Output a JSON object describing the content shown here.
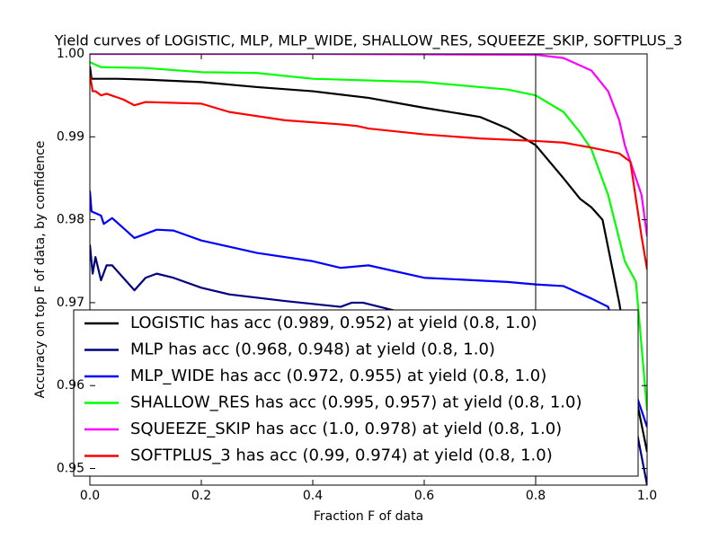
{
  "chart_data": {
    "type": "line",
    "title": "Yield curves of LOGISTIC, MLP, MLP_WIDE, SHALLOW_RES, SQUEEZE_SKIP, SOFTPLUS_3",
    "x_label": "Fraction F of data",
    "y_label": "Accuracy on top F of data, by confidence",
    "xlim": [
      0,
      1
    ],
    "ylim": [
      0.948,
      1.0
    ],
    "xticks": [
      {
        "value": 0,
        "label": "0.0"
      },
      {
        "value": 0.2,
        "label": "0.2"
      },
      {
        "value": 0.4,
        "label": "0.4"
      },
      {
        "value": 0.6,
        "label": "0.6"
      },
      {
        "value": 0.8,
        "label": "0.8"
      },
      {
        "value": 1,
        "label": "1.0"
      }
    ],
    "yticks": [
      {
        "value": 0.95,
        "label": "0.95"
      },
      {
        "value": 0.96,
        "label": "0.96"
      },
      {
        "value": 0.97,
        "label": "0.97"
      },
      {
        "value": 0.98,
        "label": "0.98"
      },
      {
        "value": 0.99,
        "label": "0.99"
      },
      {
        "value": 1.0,
        "label": "1.00"
      }
    ],
    "vline": 0.8,
    "legend": "lower left",
    "series": [
      {
        "name": "LOGISTIC has acc (0.989, 0.952) at yield (0.8, 1.0)",
        "color": "#000000",
        "x": [
          0,
          0.003,
          0.05,
          0.1,
          0.2,
          0.3,
          0.4,
          0.5,
          0.6,
          0.7,
          0.75,
          0.8,
          0.85,
          0.88,
          0.9,
          0.92,
          0.95,
          0.97,
          1.0
        ],
        "values": [
          0.9985,
          0.997,
          0.997,
          0.9969,
          0.9966,
          0.996,
          0.9955,
          0.9947,
          0.9935,
          0.9924,
          0.991,
          0.989,
          0.985,
          0.9825,
          0.9815,
          0.98,
          0.97,
          0.962,
          0.952
        ]
      },
      {
        "name": "MLP has acc (0.968, 0.948) at yield (0.8, 1.0)",
        "color": "#000080",
        "x": [
          0,
          0.005,
          0.01,
          0.02,
          0.03,
          0.04,
          0.08,
          0.1,
          0.12,
          0.15,
          0.2,
          0.25,
          0.35,
          0.45,
          0.47,
          0.49,
          0.55,
          0.7,
          0.8,
          0.9,
          0.95,
          0.98,
          1.0
        ],
        "values": [
          0.977,
          0.9735,
          0.9755,
          0.9727,
          0.9745,
          0.9745,
          0.9715,
          0.973,
          0.9735,
          0.973,
          0.9718,
          0.971,
          0.9702,
          0.9695,
          0.97,
          0.97,
          0.969,
          0.9685,
          0.968,
          0.966,
          0.962,
          0.955,
          0.948
        ]
      },
      {
        "name": "MLP_WIDE has acc (0.972, 0.955) at yield (0.8, 1.0)",
        "color": "#0000ff",
        "x": [
          0,
          0.003,
          0.01,
          0.02,
          0.025,
          0.04,
          0.06,
          0.08,
          0.12,
          0.15,
          0.2,
          0.3,
          0.4,
          0.45,
          0.5,
          0.6,
          0.75,
          0.8,
          0.85,
          0.9,
          0.93,
          0.96,
          1.0
        ],
        "values": [
          0.9835,
          0.981,
          0.9808,
          0.9805,
          0.9795,
          0.9802,
          0.979,
          0.9778,
          0.9788,
          0.9787,
          0.9775,
          0.976,
          0.975,
          0.9742,
          0.9745,
          0.973,
          0.9725,
          0.9722,
          0.972,
          0.9705,
          0.9695,
          0.963,
          0.955
        ]
      },
      {
        "name": "SHALLOW_RES has acc (0.995, 0.957) at yield (0.8, 1.0)",
        "color": "#00ff00",
        "x": [
          0,
          0.02,
          0.1,
          0.2,
          0.3,
          0.4,
          0.6,
          0.7,
          0.75,
          0.8,
          0.85,
          0.88,
          0.9,
          0.93,
          0.96,
          0.98,
          1.0
        ],
        "values": [
          0.999,
          0.9984,
          0.9983,
          0.9978,
          0.9977,
          0.997,
          0.9966,
          0.996,
          0.9957,
          0.995,
          0.993,
          0.9905,
          0.9885,
          0.983,
          0.975,
          0.9725,
          0.957
        ]
      },
      {
        "name": "SQUEEZE_SKIP has acc (1.0, 0.978) at yield (0.8, 1.0)",
        "color": "#ff00ff",
        "x": [
          0,
          0.4,
          0.8,
          0.85,
          0.9,
          0.93,
          0.95,
          0.96,
          0.97,
          0.99,
          1.0
        ],
        "values": [
          1.0,
          1.0,
          0.9999,
          0.9995,
          0.998,
          0.9955,
          0.992,
          0.989,
          0.987,
          0.983,
          0.978
        ]
      },
      {
        "name": "SOFTPLUS_3 has acc (0.99, 0.974) at yield (0.8, 1.0)",
        "color": "#ff0000",
        "x": [
          0,
          0.005,
          0.01,
          0.02,
          0.03,
          0.06,
          0.08,
          0.1,
          0.2,
          0.25,
          0.35,
          0.45,
          0.48,
          0.5,
          0.6,
          0.7,
          0.8,
          0.85,
          0.9,
          0.95,
          0.97,
          0.99,
          1.0
        ],
        "values": [
          0.9975,
          0.9955,
          0.9955,
          0.995,
          0.9952,
          0.9945,
          0.9938,
          0.9942,
          0.994,
          0.993,
          0.992,
          0.9915,
          0.9913,
          0.991,
          0.9903,
          0.9898,
          0.9895,
          0.9893,
          0.9887,
          0.988,
          0.987,
          0.978,
          0.974
        ]
      }
    ]
  }
}
